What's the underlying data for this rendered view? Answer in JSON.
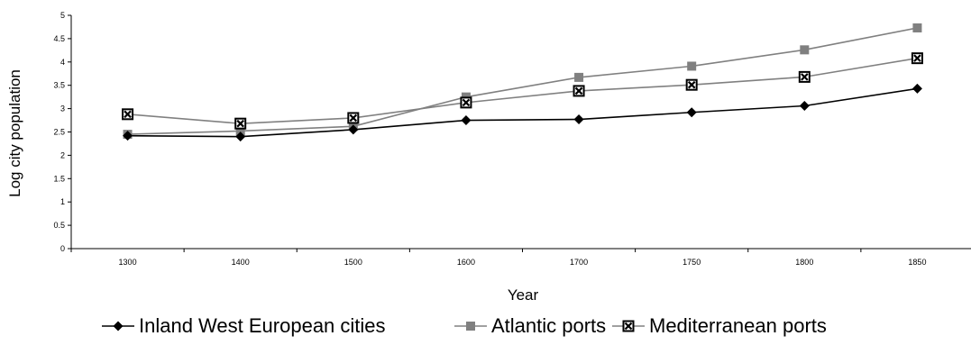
{
  "chart_data": {
    "type": "line",
    "categories": [
      "1300",
      "1400",
      "1500",
      "1600",
      "1700",
      "1750",
      "1800",
      "1850"
    ],
    "xlabel": "Year",
    "ylabel": "Log city population",
    "ylim": [
      0,
      5
    ],
    "yticks": [
      "0",
      "0.5",
      "1",
      "1.5",
      "2",
      "2.5",
      "3",
      "3.5",
      "4",
      "4.5",
      "5"
    ],
    "grid": false,
    "legend_position": "bottom",
    "series": [
      {
        "name": "Inland West European cities",
        "marker": "diamond",
        "color": "#000000",
        "values": [
          2.42,
          2.4,
          2.55,
          2.75,
          2.77,
          2.92,
          3.06,
          3.43
        ]
      },
      {
        "name": "Atlantic ports",
        "marker": "square",
        "color": "#808080",
        "values": [
          2.45,
          2.52,
          2.62,
          3.25,
          3.67,
          3.91,
          4.26,
          4.73
        ]
      },
      {
        "name": "Mediterranean ports",
        "marker": "square-x",
        "color": "#808080",
        "values": [
          2.88,
          2.68,
          2.8,
          3.13,
          3.38,
          3.51,
          3.68,
          4.08
        ]
      }
    ]
  }
}
